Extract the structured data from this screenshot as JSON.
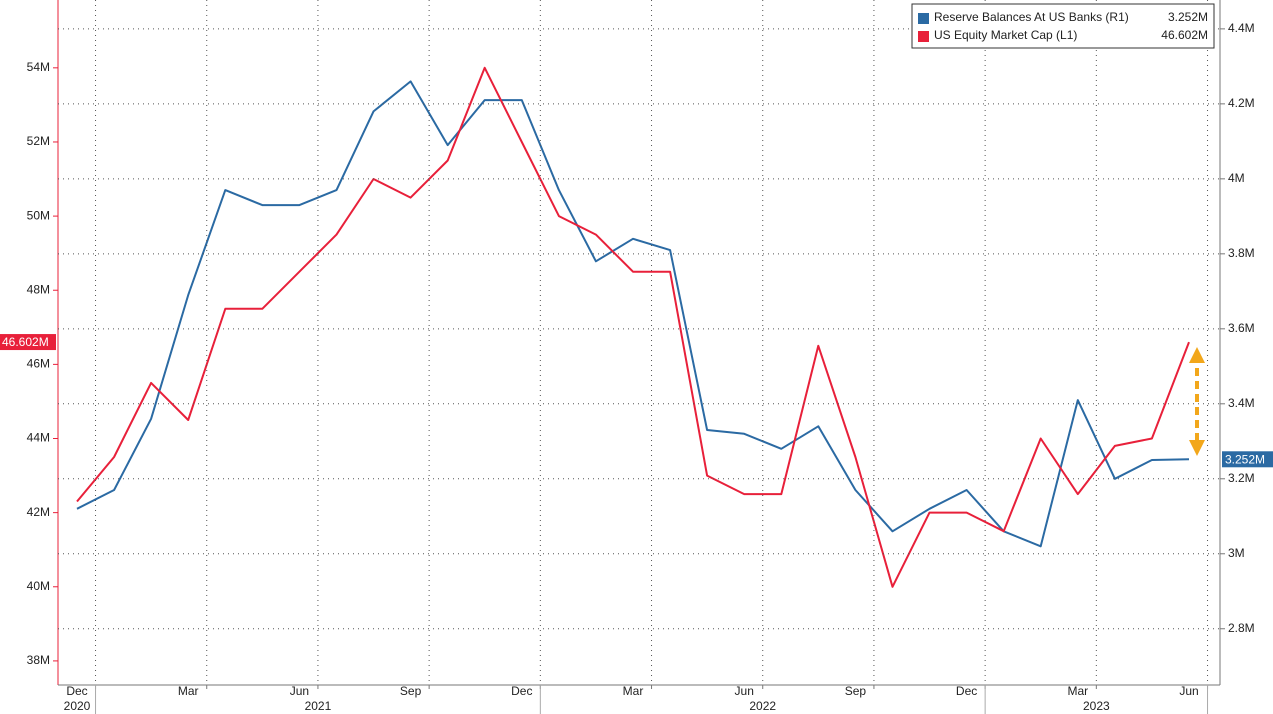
{
  "chart_data": {
    "type": "line",
    "x": [
      "2020-12",
      "2021-01",
      "2021-02",
      "2021-03",
      "2021-04",
      "2021-05",
      "2021-06",
      "2021-07",
      "2021-08",
      "2021-09",
      "2021-10",
      "2021-11",
      "2021-12",
      "2022-01",
      "2022-02",
      "2022-03",
      "2022-04",
      "2022-05",
      "2022-06",
      "2022-07",
      "2022-08",
      "2022-09",
      "2022-10",
      "2022-11",
      "2022-12",
      "2023-01",
      "2023-02",
      "2023-03",
      "2023-04",
      "2023-05",
      "2023-06"
    ],
    "xlim": [
      "2020-12",
      "2023-06"
    ],
    "xticks": [
      {
        "value": "2020-12",
        "label": "Dec"
      },
      {
        "value": "2021-03",
        "label": "Mar"
      },
      {
        "value": "2021-06",
        "label": "Jun"
      },
      {
        "value": "2021-09",
        "label": "Sep"
      },
      {
        "value": "2021-12",
        "label": "Dec"
      },
      {
        "value": "2022-03",
        "label": "Mar"
      },
      {
        "value": "2022-06",
        "label": "Jun"
      },
      {
        "value": "2022-09",
        "label": "Sep"
      },
      {
        "value": "2022-12",
        "label": "Dec"
      },
      {
        "value": "2023-03",
        "label": "Mar"
      },
      {
        "value": "2023-06",
        "label": "Jun"
      }
    ],
    "years": [
      "2020",
      "2021",
      "2022",
      "2023"
    ],
    "ylim": [
      37.35,
      55.83
    ],
    "yticks": [
      {
        "value": 38,
        "label": "38M"
      },
      {
        "value": 40,
        "label": "40M"
      },
      {
        "value": 42,
        "label": "42M"
      },
      {
        "value": 44,
        "label": "44M"
      },
      {
        "value": 46,
        "label": "46M"
      },
      {
        "value": 48,
        "label": "48M"
      },
      {
        "value": 50,
        "label": "50M"
      },
      {
        "value": 52,
        "label": "52M"
      },
      {
        "value": 54,
        "label": "54M"
      }
    ],
    "y2lim": [
      2.65,
      4.477
    ],
    "y2ticks": [
      {
        "value": 2.8,
        "label": "2.8M"
      },
      {
        "value": 3,
        "label": "3M"
      },
      {
        "value": 3.2,
        "label": "3.2M"
      },
      {
        "value": 3.4,
        "label": "3.4M"
      },
      {
        "value": 3.6,
        "label": "3.6M"
      },
      {
        "value": 3.8,
        "label": "3.8M"
      },
      {
        "value": 4,
        "label": "4M"
      },
      {
        "value": 4.2,
        "label": "4.2M"
      },
      {
        "value": 4.4,
        "label": "4.4M"
      }
    ],
    "grid": true,
    "legend": "top-right",
    "series": [
      {
        "name": "Reserve Balances At US Banks (R1)",
        "color": "#2b6aa3",
        "axis": "y2",
        "last_label": "3.252M",
        "values": [
          3.12,
          3.17,
          3.36,
          3.69,
          3.97,
          3.93,
          3.93,
          3.97,
          4.18,
          4.26,
          4.09,
          4.21,
          4.21,
          3.97,
          3.78,
          3.84,
          3.81,
          3.33,
          3.32,
          3.28,
          3.34,
          3.17,
          3.06,
          3.12,
          3.17,
          3.06,
          3.02,
          3.41,
          3.2,
          3.25,
          3.252
        ]
      },
      {
        "name": "US Equity Market Cap  (L1)",
        "color": "#e8203a",
        "axis": "y",
        "last_label": "46.602M",
        "values": [
          42.3,
          43.5,
          45.5,
          44.5,
          47.5,
          47.5,
          48.5,
          49.5,
          51.0,
          50.5,
          51.5,
          54.0,
          52.0,
          50.0,
          49.5,
          48.5,
          48.5,
          43.0,
          42.5,
          42.5,
          46.5,
          43.5,
          40.0,
          42.0,
          42.0,
          41.5,
          44.0,
          42.5,
          43.8,
          44.0,
          46.602
        ]
      }
    ]
  }
}
